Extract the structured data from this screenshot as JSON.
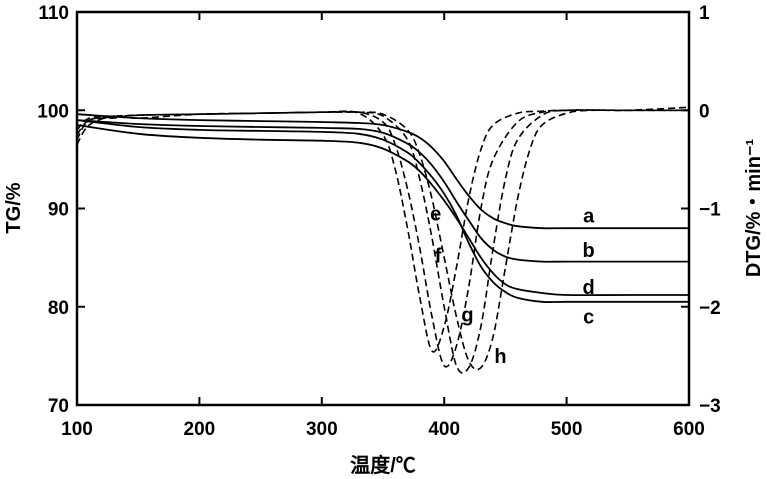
{
  "chart_data": {
    "type": "line",
    "xlabel": "温度/℃",
    "ylabel_left": "TG/%",
    "ylabel_right": "DTG/%・min⁻¹",
    "xlim": [
      100,
      600
    ],
    "ylim_left": [
      70,
      110
    ],
    "ylim_right": [
      -3,
      1
    ],
    "x_ticks": [
      "100",
      "200",
      "300",
      "400",
      "500",
      "600"
    ],
    "y_left_ticks": [
      "70",
      "80",
      "90",
      "100",
      "110"
    ],
    "y_right_ticks": [
      "−3",
      "−2",
      "−1",
      "0",
      "1"
    ],
    "grid": false,
    "legend": "none",
    "series": [
      {
        "name": "a",
        "axis": "left",
        "style": "solid",
        "x": [
          100,
          150,
          200,
          250,
          300,
          330,
          350,
          370,
          380,
          390,
          400,
          410,
          420,
          430,
          440,
          450,
          460,
          480,
          500,
          550,
          600
        ],
        "y": [
          99.6,
          99.2,
          99.0,
          98.9,
          98.8,
          98.7,
          98.5,
          97.8,
          97.2,
          96.2,
          94.8,
          93.0,
          91.3,
          89.9,
          89.0,
          88.5,
          88.2,
          88.0,
          88.0,
          88.0,
          88.0
        ]
      },
      {
        "name": "b",
        "axis": "left",
        "style": "solid",
        "x": [
          100,
          150,
          200,
          250,
          300,
          330,
          350,
          370,
          380,
          390,
          400,
          410,
          420,
          430,
          440,
          450,
          460,
          480,
          500,
          550,
          600
        ],
        "y": [
          99.0,
          98.6,
          98.4,
          98.3,
          98.2,
          98.1,
          97.7,
          96.6,
          95.7,
          94.4,
          92.7,
          90.7,
          88.8,
          87.0,
          85.8,
          85.1,
          84.8,
          84.6,
          84.6,
          84.6,
          84.6
        ]
      },
      {
        "name": "c",
        "axis": "left",
        "style": "solid",
        "x": [
          100,
          150,
          200,
          250,
          300,
          330,
          350,
          370,
          380,
          390,
          400,
          410,
          420,
          430,
          440,
          450,
          460,
          480,
          500,
          550,
          600
        ],
        "y": [
          99.0,
          98.3,
          98.0,
          97.9,
          97.8,
          97.6,
          97.0,
          95.7,
          94.6,
          93.2,
          91.5,
          89.3,
          86.5,
          84.1,
          82.5,
          81.5,
          80.9,
          80.5,
          80.5,
          80.5,
          80.5
        ]
      },
      {
        "name": "d",
        "axis": "left",
        "style": "solid",
        "x": [
          100,
          150,
          200,
          250,
          300,
          330,
          350,
          370,
          380,
          390,
          400,
          410,
          420,
          430,
          440,
          450,
          460,
          480,
          500,
          550,
          600
        ],
        "y": [
          98.5,
          97.6,
          97.2,
          97.0,
          96.9,
          96.7,
          96.1,
          94.8,
          93.8,
          92.4,
          90.8,
          89.0,
          87.0,
          85.0,
          83.4,
          82.3,
          81.8,
          81.4,
          81.2,
          81.2,
          81.2
        ]
      },
      {
        "name": "e",
        "axis": "right",
        "style": "dashed",
        "x": [
          100,
          110,
          130,
          150,
          200,
          250,
          300,
          330,
          350,
          360,
          370,
          380,
          390,
          400,
          410,
          420,
          430,
          440,
          460,
          480,
          500,
          550,
          600
        ],
        "y": [
          -0.35,
          -0.15,
          -0.06,
          -0.08,
          -0.04,
          -0.03,
          -0.02,
          -0.03,
          -0.25,
          -0.6,
          -1.2,
          -1.9,
          -2.45,
          -2.2,
          -1.6,
          -0.9,
          -0.4,
          -0.15,
          -0.03,
          -0.01,
          0.0,
          0.0,
          0.0
        ]
      },
      {
        "name": "f",
        "axis": "right",
        "style": "dashed",
        "x": [
          100,
          110,
          130,
          150,
          200,
          250,
          300,
          330,
          350,
          360,
          370,
          380,
          390,
          400,
          410,
          420,
          430,
          440,
          460,
          480,
          500,
          550,
          600
        ],
        "y": [
          -0.3,
          -0.1,
          -0.08,
          -0.05,
          -0.04,
          -0.03,
          -0.02,
          -0.02,
          -0.12,
          -0.35,
          -0.8,
          -1.4,
          -2.1,
          -2.6,
          -2.4,
          -1.8,
          -1.0,
          -0.5,
          -0.12,
          -0.02,
          0.0,
          0.0,
          0.0
        ]
      },
      {
        "name": "g",
        "axis": "right",
        "style": "dashed",
        "x": [
          100,
          110,
          130,
          150,
          200,
          250,
          300,
          330,
          350,
          370,
          380,
          390,
          400,
          410,
          420,
          430,
          440,
          450,
          460,
          480,
          500,
          550,
          600
        ],
        "y": [
          -0.25,
          -0.1,
          -0.07,
          -0.05,
          -0.04,
          -0.03,
          -0.02,
          -0.02,
          -0.06,
          -0.3,
          -0.7,
          -1.3,
          -2.0,
          -2.6,
          -2.62,
          -2.2,
          -1.4,
          -0.7,
          -0.3,
          -0.05,
          0.0,
          0.0,
          0.0
        ]
      },
      {
        "name": "h",
        "axis": "right",
        "style": "dashed",
        "x": [
          100,
          110,
          130,
          150,
          200,
          250,
          300,
          330,
          350,
          370,
          380,
          390,
          400,
          410,
          420,
          430,
          440,
          450,
          460,
          470,
          480,
          500,
          520,
          550,
          600
        ],
        "y": [
          -0.2,
          -0.08,
          -0.06,
          -0.05,
          -0.04,
          -0.03,
          -0.02,
          -0.02,
          -0.04,
          -0.2,
          -0.45,
          -0.9,
          -1.5,
          -2.1,
          -2.55,
          -2.62,
          -2.3,
          -1.6,
          -0.9,
          -0.4,
          -0.15,
          -0.03,
          0.0,
          0.0,
          0.03
        ]
      }
    ],
    "curve_labels": [
      {
        "text": "a",
        "x": 518,
        "y_left": 89.3
      },
      {
        "text": "b",
        "x": 518,
        "y_left": 85.8
      },
      {
        "text": "d",
        "x": 518,
        "y_left": 82.0
      },
      {
        "text": "c",
        "x": 518,
        "y_left": 79.0
      },
      {
        "text": "e",
        "x": 393,
        "y_left": 89.5
      },
      {
        "text": "f",
        "x": 395,
        "y_left": 85.2
      },
      {
        "text": "g",
        "x": 419,
        "y_left": 79.2
      },
      {
        "text": "h",
        "x": 446,
        "y_left": 75.0
      }
    ]
  }
}
